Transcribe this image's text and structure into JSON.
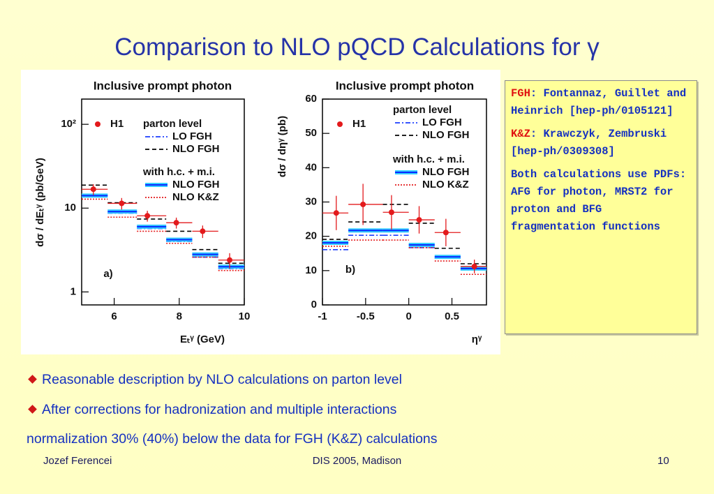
{
  "title": "Comparison to NLO pQCD Calculations for γ",
  "chart_data": [
    {
      "type": "histogram",
      "title": "Inclusive prompt photon",
      "panel": "a)",
      "xlabel": "Eₜᵞ (GeV)",
      "ylabel": "dσ / dEₜᵞ (pb/GeV)",
      "log_y": true,
      "xlim": [
        5,
        10
      ],
      "ylim": [
        0.7,
        200
      ],
      "xticks": [
        6,
        8,
        10
      ],
      "yticks": [
        1,
        10,
        {
          "value": 100,
          "label": "10²"
        }
      ],
      "bins": [
        5,
        5.8,
        6.7,
        7.6,
        8.4,
        9.2,
        10
      ],
      "legend_groups": [
        "parton level",
        "with h.c. + m.i."
      ],
      "series": [
        {
          "name": "H1",
          "style": "points",
          "color": "#e31a1c",
          "x": [
            5.36,
            6.23,
            7.02,
            7.91,
            8.72,
            9.55
          ],
          "values": [
            16.8,
            11.4,
            8.1,
            6.7,
            5.3,
            2.4
          ],
          "errors": [
            2.5,
            1.8,
            1.2,
            1.0,
            0.9,
            0.5
          ]
        },
        {
          "name": "LO FGH",
          "group": 0,
          "style": "dashdot",
          "color": "#1a3cff",
          "values": [
            13.6,
            8.7,
            5.7,
            4.0,
            2.6,
            1.9
          ]
        },
        {
          "name": "NLO FGH",
          "group": 0,
          "style": "dashed",
          "color": "#000000",
          "values": [
            18.8,
            11.6,
            7.4,
            5.3,
            3.2,
            2.2
          ]
        },
        {
          "name": "NLO FGH",
          "group": 1,
          "style": "band",
          "color": "#0a28ff",
          "band_color": "#33ccff",
          "values": [
            14.1,
            9.1,
            6.0,
            4.2,
            2.8,
            2.0
          ]
        },
        {
          "name": "NLO K&Z",
          "group": 1,
          "style": "dotted",
          "color": "#e31a1c",
          "values": [
            12.8,
            7.8,
            5.3,
            3.8,
            2.6,
            1.8
          ]
        }
      ]
    },
    {
      "type": "histogram",
      "title": "Inclusive prompt photon",
      "panel": "b)",
      "xlabel": "ηᵞ",
      "ylabel": "dσ / dηᵞ (pb)",
      "log_y": false,
      "xlim": [
        -1,
        0.9
      ],
      "ylim": [
        0,
        60
      ],
      "xticks": [
        -1,
        -0.5,
        0,
        0.5
      ],
      "yticks": [
        0,
        10,
        20,
        30,
        40,
        50,
        60
      ],
      "bins": [
        -1,
        -0.7,
        -0.3,
        0,
        0.3,
        0.6,
        0.9
      ],
      "legend_groups": [
        "parton level",
        "with h.c. + m.i."
      ],
      "series": [
        {
          "name": "H1",
          "style": "points",
          "color": "#e31a1c",
          "x": [
            -0.84,
            -0.53,
            -0.2,
            0.12,
            0.43,
            0.76
          ],
          "values": [
            26.8,
            29.3,
            27.0,
            24.8,
            21.1,
            11.2
          ],
          "errors": [
            5,
            6,
            5,
            4,
            4,
            2
          ]
        },
        {
          "name": "LO FGH",
          "group": 0,
          "style": "dashdot",
          "color": "#1a3cff",
          "values": [
            16.1,
            20.3,
            20.3,
            16.7,
            13.6,
            10.2
          ]
        },
        {
          "name": "NLO FGH",
          "group": 0,
          "style": "dashed",
          "color": "#000000",
          "values": [
            19.1,
            24.2,
            29.3,
            23.8,
            16.5,
            12.0
          ]
        },
        {
          "name": "NLO FGH",
          "group": 1,
          "style": "band",
          "color": "#0a28ff",
          "band_color": "#33ccff",
          "values": [
            18.1,
            21.7,
            21.7,
            17.5,
            14.0,
            10.6
          ]
        },
        {
          "name": "NLO K&Z",
          "group": 1,
          "style": "dotted",
          "color": "#e31a1c",
          "values": [
            17.1,
            18.9,
            18.9,
            16.7,
            12.8,
            8.9
          ]
        }
      ]
    }
  ],
  "references": [
    {
      "key": "FGH",
      "text": ": Fontannaz, Guillet and Heinrich [hep-ph/0105121]"
    },
    {
      "key": "K&Z",
      "text": ": Krawczyk, Zembruski [hep-ph/0309308]"
    }
  ],
  "note": "Both calculations use PDFs: AFG for photon, MRST2 for proton and BFG fragmentation functions",
  "bullets": [
    "Reasonable description by NLO calculations on parton level",
    "After corrections for hadronization and multiple interactions"
  ],
  "conclusion": "normalization 30% (40%) below the data for FGH (K&Z) calculations",
  "footer": {
    "author": "Jozef Ferencei",
    "event": "DIS 2005, Madison",
    "page": "10"
  }
}
